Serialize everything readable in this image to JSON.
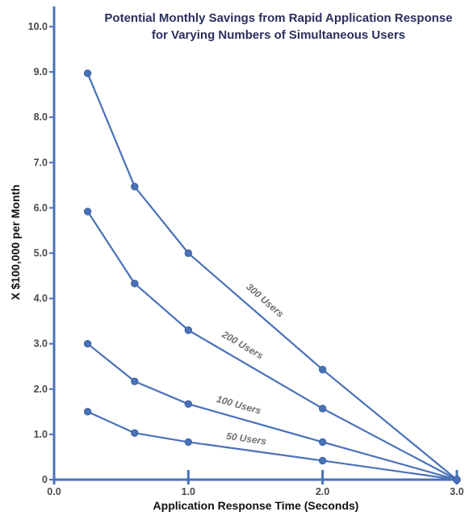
{
  "chart_data": {
    "type": "line",
    "title_lines": [
      "Potential Monthly Savings from Rapid Application Response",
      "for Varying Numbers of Simultaneous Users"
    ],
    "xlabel": "Application Response Time (Seconds)",
    "ylabel": "X $100,000 per Month",
    "xlim": [
      0,
      3
    ],
    "ylim": [
      0,
      10
    ],
    "x_ticks": [
      {
        "value": 0,
        "label": "0.0"
      },
      {
        "value": 1,
        "label": "1.0"
      },
      {
        "value": 2,
        "label": "2.0"
      },
      {
        "value": 3,
        "label": "3.0"
      }
    ],
    "y_ticks": [
      {
        "value": 0,
        "label": "0"
      },
      {
        "value": 1,
        "label": "1.0"
      },
      {
        "value": 2,
        "label": "2.0"
      },
      {
        "value": 3,
        "label": "3.0"
      },
      {
        "value": 4,
        "label": "4.0"
      },
      {
        "value": 5,
        "label": "5.0"
      },
      {
        "value": 6,
        "label": "6.0"
      },
      {
        "value": 7,
        "label": "7.0"
      },
      {
        "value": 8,
        "label": "8.0"
      },
      {
        "value": 9,
        "label": "9.0"
      },
      {
        "value": 10,
        "label": "10.0"
      }
    ],
    "grid": false,
    "line_color": "#4a72b8",
    "series": [
      {
        "name": "300 Users",
        "x": [
          0.25,
          0.6,
          1.0,
          2.0,
          3.0
        ],
        "y": [
          8.97,
          6.47,
          5.0,
          2.43,
          0
        ]
      },
      {
        "name": "200 Users",
        "x": [
          0.25,
          0.6,
          1.0,
          2.0,
          3.0
        ],
        "y": [
          5.92,
          4.33,
          3.3,
          1.57,
          0
        ]
      },
      {
        "name": "100 Users",
        "x": [
          0.25,
          0.6,
          1.0,
          2.0,
          3.0
        ],
        "y": [
          3.0,
          2.17,
          1.67,
          0.83,
          0
        ]
      },
      {
        "name": "50 Users",
        "x": [
          0.25,
          0.6,
          1.0,
          2.0,
          3.0
        ],
        "y": [
          1.5,
          1.03,
          0.83,
          0.42,
          0
        ]
      }
    ]
  }
}
